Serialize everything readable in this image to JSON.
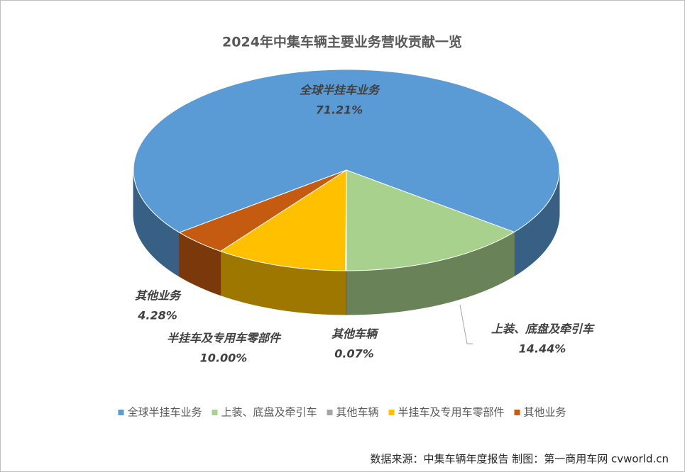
{
  "chart_data": {
    "type": "pie",
    "title": "2024年中集车辆主要业务营收贡献一览",
    "categories": [
      "全球半挂车业务",
      "上装、底盘及牵引车",
      "其他车辆",
      "半挂车及专用车零部件",
      "其他业务"
    ],
    "values": [
      71.21,
      14.44,
      0.07,
      10.0,
      4.28
    ],
    "value_labels": [
      "71.21%",
      "14.44%",
      "0.07%",
      "10.00%",
      "4.28%"
    ],
    "colors": [
      "#5b9bd5",
      "#a9d18e",
      "#a5a5a5",
      "#ffc000",
      "#c55a11"
    ],
    "legend": "bottom",
    "source": "数据来源：中集车辆年度报告  制图：第一商用车网 cvworld.cn"
  }
}
